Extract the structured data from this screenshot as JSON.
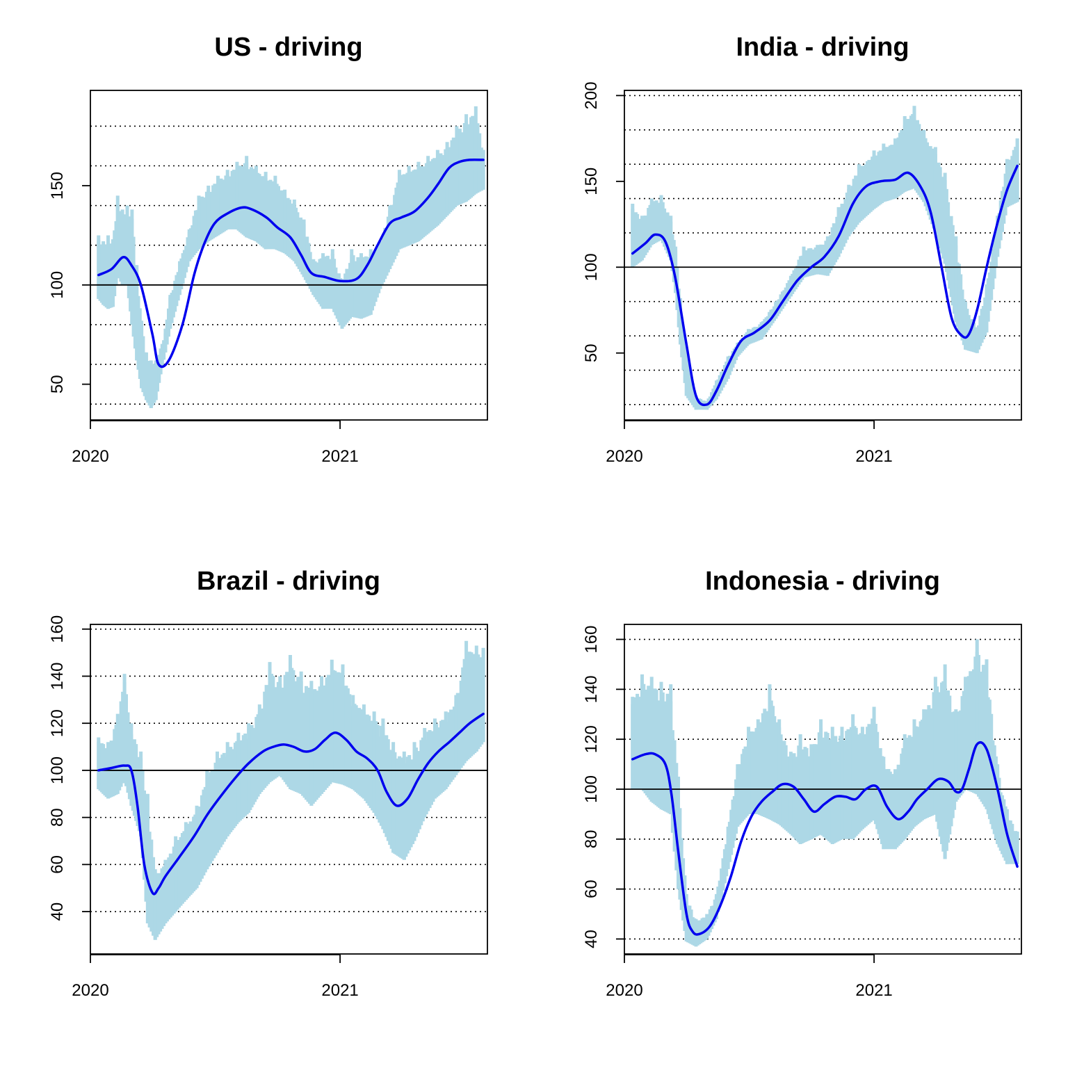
{
  "chart_data": [
    {
      "type": "line",
      "title": "US - driving",
      "xlabel": "",
      "ylabel": "",
      "xlim": [
        "2020-01-01",
        "2021-08-05"
      ],
      "ylim": [
        32,
        198
      ],
      "x_ticks": [
        "2020",
        "2021"
      ],
      "y_ticks": [
        50,
        100,
        150
      ],
      "reference_line": 100,
      "grid_lines": [
        40,
        60,
        80,
        120,
        140,
        160,
        180
      ],
      "colors": {
        "raw": "#add8e6",
        "smooth": "#0000ee",
        "reference": "#000000"
      },
      "series": [
        {
          "style": "raw-daily",
          "x": [
            "2020-01-13",
            "2020-01-20",
            "2020-01-27",
            "2020-02-03",
            "2020-02-10",
            "2020-02-17",
            "2020-02-24",
            "2020-03-02",
            "2020-03-09",
            "2020-03-16",
            "2020-03-23",
            "2020-03-30",
            "2020-04-06",
            "2020-04-13",
            "2020-04-20",
            "2020-04-27",
            "2020-05-11",
            "2020-05-25",
            "2020-06-08",
            "2020-06-22",
            "2020-07-06",
            "2020-07-20",
            "2020-08-03",
            "2020-08-17",
            "2020-08-31",
            "2020-09-14",
            "2020-09-28",
            "2020-10-12",
            "2020-10-26",
            "2020-11-09",
            "2020-11-23",
            "2020-12-07",
            "2020-12-21",
            "2021-01-04",
            "2021-01-18",
            "2021-02-01",
            "2021-02-15",
            "2021-03-01",
            "2021-03-15",
            "2021-03-29",
            "2021-04-12",
            "2021-04-26",
            "2021-05-10",
            "2021-05-24",
            "2021-06-07",
            "2021-06-21",
            "2021-07-05",
            "2021-07-19",
            "2021-07-30"
          ],
          "high": [
            125,
            122,
            125,
            123,
            145,
            138,
            140,
            138,
            110,
            82,
            66,
            62,
            62,
            68,
            78,
            95,
            112,
            128,
            145,
            150,
            155,
            158,
            162,
            165,
            160,
            157,
            155,
            148,
            143,
            133,
            113,
            116,
            118,
            103,
            118,
            116,
            118,
            122,
            140,
            158,
            160,
            162,
            165,
            168,
            172,
            180,
            186,
            190,
            168
          ],
          "low": [
            93,
            90,
            88,
            89,
            105,
            100,
            100,
            80,
            62,
            48,
            42,
            38,
            42,
            55,
            66,
            78,
            95,
            112,
            118,
            122,
            125,
            128,
            128,
            124,
            122,
            118,
            118,
            116,
            112,
            104,
            95,
            88,
            88,
            78,
            84,
            83,
            85,
            98,
            108,
            118,
            120,
            122,
            126,
            130,
            135,
            140,
            142,
            146,
            148
          ]
        },
        {
          "name": "",
          "style": "smooth",
          "x": [
            "2020-01-13",
            "2020-02-01",
            "2020-02-18",
            "2020-03-01",
            "2020-03-15",
            "2020-04-01",
            "2020-04-10",
            "2020-04-25",
            "2020-05-15",
            "2020-06-01",
            "2020-06-15",
            "2020-07-01",
            "2020-07-20",
            "2020-08-10",
            "2020-08-25",
            "2020-09-15",
            "2020-10-01",
            "2020-10-20",
            "2020-11-05",
            "2020-11-20",
            "2020-12-10",
            "2021-01-01",
            "2021-01-25",
            "2021-02-10",
            "2021-02-25",
            "2021-03-15",
            "2021-04-01",
            "2021-04-20",
            "2021-05-10",
            "2021-05-25",
            "2021-06-10",
            "2021-06-25",
            "2021-07-10",
            "2021-07-30"
          ],
          "y": [
            105,
            108,
            114,
            110,
            100,
            75,
            60,
            62,
            80,
            105,
            120,
            131,
            136,
            139,
            138,
            134,
            129,
            124,
            115,
            106,
            104,
            102,
            103,
            110,
            120,
            131,
            134,
            137,
            144,
            151,
            159,
            162,
            163,
            163
          ]
        }
      ]
    },
    {
      "type": "line",
      "title": "India - driving",
      "xlabel": "",
      "ylabel": "",
      "xlim": [
        "2020-01-01",
        "2021-08-05"
      ],
      "ylim": [
        11,
        203
      ],
      "x_ticks": [
        "2020",
        "2021"
      ],
      "y_ticks": [
        50,
        100,
        150,
        200
      ],
      "reference_line": 100,
      "grid_lines": [
        20,
        40,
        60,
        80,
        120,
        140,
        160,
        180,
        200
      ],
      "colors": {
        "raw": "#add8e6",
        "smooth": "#0000ee",
        "reference": "#000000"
      },
      "series": [
        {
          "style": "raw-daily",
          "x": [
            "2020-01-13",
            "2020-01-27",
            "2020-02-10",
            "2020-02-24",
            "2020-03-09",
            "2020-03-16",
            "2020-03-23",
            "2020-04-01",
            "2020-04-15",
            "2020-05-01",
            "2020-05-15",
            "2020-06-01",
            "2020-06-15",
            "2020-07-01",
            "2020-07-20",
            "2020-08-10",
            "2020-09-01",
            "2020-09-20",
            "2020-10-10",
            "2020-10-25",
            "2020-11-10",
            "2020-11-25",
            "2020-12-10",
            "2021-01-01",
            "2021-01-15",
            "2021-02-01",
            "2021-02-15",
            "2021-03-01",
            "2021-03-15",
            "2021-04-01",
            "2021-04-15",
            "2021-05-01",
            "2021-05-15",
            "2021-06-01",
            "2021-06-15",
            "2021-07-01",
            "2021-07-15",
            "2021-07-30"
          ],
          "high": [
            137,
            130,
            140,
            142,
            130,
            112,
            82,
            50,
            25,
            22,
            34,
            48,
            56,
            64,
            68,
            80,
            95,
            112,
            113,
            118,
            135,
            148,
            160,
            168,
            172,
            175,
            188,
            194,
            180,
            170,
            155,
            118,
            80,
            65,
            90,
            130,
            163,
            175
          ],
          "low": [
            100,
            104,
            113,
            116,
            104,
            85,
            55,
            25,
            17,
            17,
            23,
            35,
            48,
            55,
            58,
            70,
            83,
            94,
            96,
            95,
            106,
            118,
            126,
            134,
            138,
            140,
            144,
            146,
            138,
            120,
            102,
            68,
            52,
            50,
            62,
            106,
            135,
            138
          ]
        },
        {
          "name": "",
          "style": "smooth",
          "x": [
            "2020-01-13",
            "2020-02-01",
            "2020-02-15",
            "2020-03-01",
            "2020-03-15",
            "2020-04-01",
            "2020-04-15",
            "2020-05-01",
            "2020-05-15",
            "2020-06-01",
            "2020-06-20",
            "2020-07-10",
            "2020-08-01",
            "2020-08-20",
            "2020-09-10",
            "2020-10-01",
            "2020-10-20",
            "2020-11-10",
            "2020-12-01",
            "2020-12-20",
            "2021-01-10",
            "2021-02-01",
            "2021-02-20",
            "2021-03-10",
            "2021-03-25",
            "2021-04-10",
            "2021-04-25",
            "2021-05-10",
            "2021-05-20",
            "2021-06-01",
            "2021-06-15",
            "2021-07-01",
            "2021-07-15",
            "2021-07-30"
          ],
          "y": [
            108,
            114,
            119,
            115,
            95,
            55,
            25,
            20,
            28,
            43,
            57,
            62,
            69,
            80,
            92,
            100,
            106,
            118,
            137,
            147,
            150,
            151,
            155,
            147,
            132,
            100,
            70,
            60,
            61,
            75,
            100,
            126,
            145,
            159
          ]
        }
      ]
    },
    {
      "type": "line",
      "title": "Brazil - driving",
      "xlabel": "",
      "ylabel": "",
      "xlim": [
        "2020-01-01",
        "2021-08-05"
      ],
      "ylim": [
        22,
        162
      ],
      "x_ticks": [
        "2020",
        "2021"
      ],
      "y_ticks": [
        40,
        60,
        80,
        100,
        120,
        140,
        160
      ],
      "reference_line": 100,
      "grid_lines": [
        40,
        60,
        80,
        120,
        140,
        160
      ],
      "colors": {
        "raw": "#add8e6",
        "smooth": "#0000ee",
        "reference": "#000000"
      },
      "series": [
        {
          "style": "raw-daily",
          "x": [
            "2020-01-13",
            "2020-01-27",
            "2020-02-10",
            "2020-02-20",
            "2020-03-01",
            "2020-03-15",
            "2020-03-25",
            "2020-04-05",
            "2020-04-20",
            "2020-05-05",
            "2020-05-20",
            "2020-06-05",
            "2020-06-20",
            "2020-07-05",
            "2020-07-20",
            "2020-08-05",
            "2020-08-20",
            "2020-09-05",
            "2020-09-20",
            "2020-10-05",
            "2020-10-20",
            "2020-11-05",
            "2020-11-20",
            "2020-12-05",
            "2020-12-20",
            "2021-01-05",
            "2021-01-20",
            "2021-02-05",
            "2021-02-20",
            "2021-03-05",
            "2021-03-20",
            "2021-04-05",
            "2021-04-20",
            "2021-05-05",
            "2021-05-20",
            "2021-06-05",
            "2021-06-20",
            "2021-07-05",
            "2021-07-20",
            "2021-07-30"
          ],
          "high": [
            114,
            112,
            124,
            141,
            120,
            108,
            90,
            58,
            62,
            72,
            78,
            85,
            100,
            108,
            112,
            116,
            120,
            128,
            146,
            140,
            149,
            142,
            138,
            140,
            147,
            145,
            132,
            128,
            125,
            122,
            112,
            108,
            112,
            118,
            122,
            125,
            132,
            155,
            153,
            152
          ],
          "low": [
            92,
            88,
            90,
            96,
            85,
            72,
            35,
            28,
            35,
            40,
            45,
            50,
            58,
            65,
            72,
            78,
            82,
            90,
            95,
            98,
            92,
            90,
            85,
            90,
            95,
            94,
            92,
            88,
            82,
            75,
            65,
            62,
            70,
            80,
            88,
            92,
            98,
            104,
            108,
            112
          ]
        },
        {
          "name": "",
          "style": "smooth",
          "x": [
            "2020-01-13",
            "2020-02-01",
            "2020-02-20",
            "2020-03-01",
            "2020-03-10",
            "2020-03-20",
            "2020-04-01",
            "2020-04-10",
            "2020-04-20",
            "2020-05-10",
            "2020-06-01",
            "2020-06-20",
            "2020-07-10",
            "2020-08-01",
            "2020-08-20",
            "2020-09-10",
            "2020-09-25",
            "2020-10-10",
            "2020-10-25",
            "2020-11-10",
            "2020-11-25",
            "2020-12-10",
            "2020-12-25",
            "2021-01-10",
            "2021-01-25",
            "2021-02-10",
            "2021-02-25",
            "2021-03-10",
            "2021-03-25",
            "2021-04-10",
            "2021-04-25",
            "2021-05-10",
            "2021-05-25",
            "2021-06-10",
            "2021-06-25",
            "2021-07-10",
            "2021-07-30"
          ],
          "y": [
            100,
            101,
            102,
            100,
            85,
            60,
            48,
            50,
            55,
            63,
            72,
            81,
            89,
            97,
            103,
            108,
            110,
            111,
            110,
            108,
            109,
            113,
            116,
            113,
            108,
            105,
            100,
            91,
            85,
            88,
            96,
            103,
            108,
            112,
            116,
            120,
            124
          ]
        }
      ]
    },
    {
      "type": "line",
      "title": "Indonesia - driving",
      "xlabel": "",
      "ylabel": "",
      "xlim": [
        "2020-01-01",
        "2021-08-05"
      ],
      "ylim": [
        34,
        166
      ],
      "x_ticks": [
        "2020",
        "2021"
      ],
      "y_ticks": [
        40,
        60,
        80,
        100,
        120,
        140,
        160
      ],
      "reference_line": 100,
      "grid_lines": [
        40,
        60,
        80,
        120,
        140,
        160
      ],
      "colors": {
        "raw": "#add8e6",
        "smooth": "#0000ee",
        "reference": "#000000"
      },
      "series": [
        {
          "style": "raw-daily",
          "x": [
            "2020-01-13",
            "2020-01-27",
            "2020-02-10",
            "2020-02-24",
            "2020-03-09",
            "2020-03-20",
            "2020-04-01",
            "2020-04-15",
            "2020-05-01",
            "2020-05-15",
            "2020-06-01",
            "2020-06-15",
            "2020-07-01",
            "2020-07-15",
            "2020-08-01",
            "2020-08-15",
            "2020-09-01",
            "2020-09-15",
            "2020-10-01",
            "2020-10-15",
            "2020-11-01",
            "2020-11-15",
            "2020-12-01",
            "2020-12-15",
            "2021-01-01",
            "2021-01-15",
            "2021-02-01",
            "2021-02-15",
            "2021-03-01",
            "2021-03-15",
            "2021-04-01",
            "2021-04-15",
            "2021-05-01",
            "2021-05-15",
            "2021-06-01",
            "2021-06-15",
            "2021-07-01",
            "2021-07-15",
            "2021-07-30"
          ],
          "high": [
            137,
            146,
            145,
            143,
            142,
            105,
            58,
            48,
            50,
            58,
            85,
            110,
            125,
            128,
            142,
            128,
            115,
            122,
            118,
            128,
            125,
            125,
            130,
            125,
            133,
            113,
            108,
            122,
            128,
            132,
            145,
            150,
            132,
            145,
            160,
            152,
            110,
            92,
            83
          ],
          "low": [
            100,
            100,
            95,
            92,
            90,
            60,
            39,
            37,
            40,
            48,
            68,
            85,
            90,
            90,
            88,
            86,
            82,
            78,
            80,
            82,
            78,
            80,
            80,
            84,
            88,
            76,
            76,
            80,
            85,
            88,
            90,
            72,
            95,
            100,
            98,
            92,
            78,
            70,
            70
          ]
        },
        {
          "name": "",
          "style": "smooth",
          "x": [
            "2020-01-13",
            "2020-02-01",
            "2020-02-15",
            "2020-03-01",
            "2020-03-10",
            "2020-03-20",
            "2020-04-01",
            "2020-04-10",
            "2020-04-20",
            "2020-05-05",
            "2020-05-20",
            "2020-06-05",
            "2020-06-20",
            "2020-07-05",
            "2020-07-20",
            "2020-08-05",
            "2020-08-20",
            "2020-09-05",
            "2020-09-20",
            "2020-10-05",
            "2020-10-20",
            "2020-11-05",
            "2020-11-20",
            "2020-12-05",
            "2020-12-20",
            "2021-01-05",
            "2021-01-20",
            "2021-02-05",
            "2021-02-20",
            "2021-03-05",
            "2021-03-20",
            "2021-04-05",
            "2021-04-20",
            "2021-05-01",
            "2021-05-10",
            "2021-05-20",
            "2021-06-01",
            "2021-06-15",
            "2021-07-01",
            "2021-07-15",
            "2021-07-30"
          ],
          "y": [
            112,
            114,
            114,
            110,
            98,
            75,
            50,
            43,
            42,
            45,
            53,
            65,
            79,
            89,
            95,
            99,
            102,
            101,
            96,
            91,
            94,
            97,
            97,
            96,
            100,
            101,
            93,
            88,
            91,
            96,
            100,
            104,
            103,
            99,
            100,
            108,
            118,
            116,
            100,
            82,
            69
          ]
        }
      ]
    }
  ]
}
